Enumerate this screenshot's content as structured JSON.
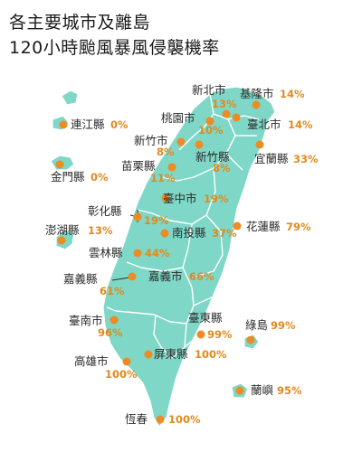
{
  "title": {
    "line1": "各主要城市及離島",
    "line2": "120小時颱風暴風侵襲機率"
  },
  "colors": {
    "land": "#7fd7c7",
    "marker": "#ec8c22",
    "percent_text": "#e08a1e"
  },
  "locations": {
    "keelung": {
      "name": "基隆市",
      "pct": "14%"
    },
    "newtaipei": {
      "name": "新北市",
      "pct": "13%"
    },
    "taipei": {
      "name": "臺北市",
      "pct": "14%"
    },
    "taoyuan": {
      "name": "桃園市",
      "pct": "10%"
    },
    "hsinchucity": {
      "name": "新竹市",
      "pct": "8%"
    },
    "hsinchu": {
      "name": "新竹縣",
      "pct": "8%"
    },
    "yilan": {
      "name": "宜蘭縣",
      "pct": "33%"
    },
    "miaoli": {
      "name": "苗栗縣",
      "pct": "11%"
    },
    "taichung": {
      "name": "臺中市",
      "pct": "19%"
    },
    "changhua": {
      "name": "彰化縣",
      "pct": "19%"
    },
    "nantou": {
      "name": "南投縣",
      "pct": "37%"
    },
    "hualien": {
      "name": "花蓮縣",
      "pct": "79%"
    },
    "yunlin": {
      "name": "雲林縣",
      "pct": "44%"
    },
    "chiayi": {
      "name": "嘉義縣",
      "pct": "61%"
    },
    "chiayicity": {
      "name": "嘉義市",
      "pct": "66%"
    },
    "tainan": {
      "name": "臺南市",
      "pct": "96%"
    },
    "taitung": {
      "name": "臺東縣",
      "pct": "99%"
    },
    "kaohsiung": {
      "name": "高雄市",
      "pct": "100%"
    },
    "pingtung": {
      "name": "屏東縣",
      "pct": "100%"
    },
    "hengchun": {
      "name": "恆春",
      "pct": "100%"
    },
    "lienchiang": {
      "name": "連江縣",
      "pct": "0%"
    },
    "kinmen": {
      "name": "金門縣",
      "pct": "0%"
    },
    "penghu": {
      "name": "澎湖縣",
      "pct": "13%"
    },
    "greenisland": {
      "name": "綠島",
      "pct": "99%"
    },
    "orchid": {
      "name": "蘭嶼",
      "pct": "95%"
    }
  }
}
